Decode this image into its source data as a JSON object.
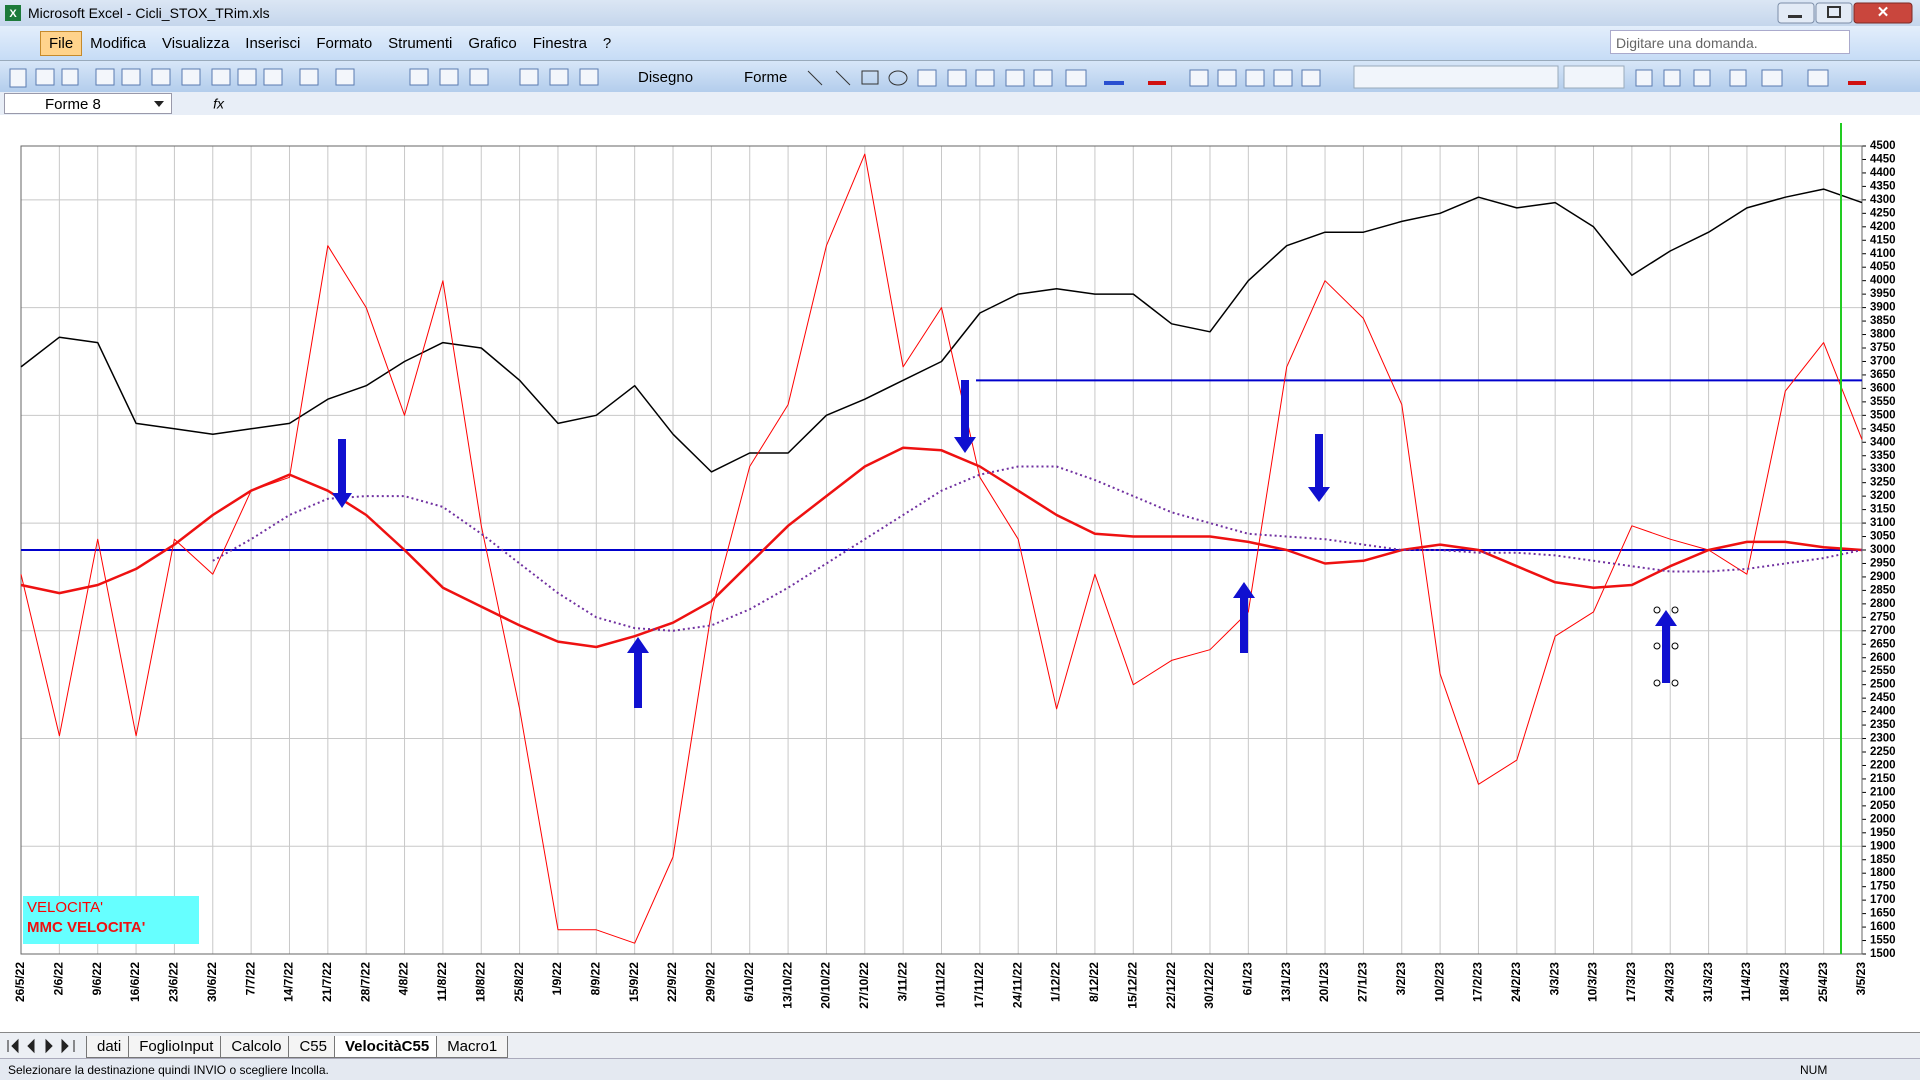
{
  "window": {
    "title": "Microsoft Excel - Cicli_STOX_TRim.xls"
  },
  "menu": [
    "File",
    "Modifica",
    "Visualizza",
    "Inserisci",
    "Formato",
    "Strumenti",
    "Grafico",
    "Finestra",
    "?"
  ],
  "help_box": "Digitare una domanda.",
  "toolbar": {
    "draw": "Disegno",
    "shapes": "Forme"
  },
  "name_box": "Forme 8",
  "sheet_tabs": [
    "dati",
    "FoglioInput",
    "Calcolo",
    "C55",
    "VelocitàC55",
    "Macro1"
  ],
  "active_tab": 4,
  "status": {
    "message": "Selezionare la destinazione quindi INVIO o scegliere Incolla.",
    "num": "NUM"
  },
  "chart_data": {
    "type": "line",
    "categories": [
      "26/5/22",
      "2/6/22",
      "9/6/22",
      "16/6/22",
      "23/6/22",
      "30/6/22",
      "7/7/22",
      "14/7/22",
      "21/7/22",
      "28/7/22",
      "4/8/22",
      "11/8/22",
      "18/8/22",
      "25/8/22",
      "1/9/22",
      "8/9/22",
      "15/9/22",
      "22/9/22",
      "29/9/22",
      "6/10/22",
      "13/10/22",
      "20/10/22",
      "27/10/22",
      "3/11/22",
      "10/11/22",
      "17/11/22",
      "24/11/22",
      "1/12/22",
      "8/12/22",
      "15/12/22",
      "22/12/22",
      "30/12/22",
      "6/1/23",
      "13/1/23",
      "20/1/23",
      "27/1/23",
      "3/2/23",
      "10/2/23",
      "17/2/23",
      "24/2/23",
      "3/3/23",
      "10/3/23",
      "17/3/23",
      "24/3/23",
      "31/3/23",
      "11/4/23",
      "18/4/23",
      "25/4/23",
      "3/5/23"
    ],
    "series": [
      {
        "color": "#000000",
        "width": 1.5,
        "values": [
          3680,
          3790,
          3770,
          3470,
          3450,
          3430,
          3450,
          3470,
          3560,
          3610,
          3700,
          3770,
          3750,
          3630,
          3470,
          3500,
          3610,
          3430,
          3290,
          3360,
          3360,
          3500,
          3560,
          3630,
          3700,
          3880,
          3950,
          3970,
          3950,
          3950,
          3840,
          3810,
          4000,
          4130,
          4180,
          4180,
          4220,
          4250,
          4310,
          4270,
          4290,
          4200,
          4020,
          4110,
          4180,
          4270,
          4310,
          4340,
          4290
        ]
      },
      {
        "name": "VELOCITA'",
        "color": "#ff0000",
        "width": 1,
        "values": [
          2910,
          2310,
          3040,
          2310,
          3040,
          2910,
          3220,
          3270,
          4130,
          3900,
          3500,
          4000,
          3090,
          2410,
          1590,
          1590,
          1540,
          1860,
          2770,
          3310,
          3540,
          4130,
          4470,
          3680,
          3900,
          3270,
          3040,
          2410,
          2910,
          2500,
          2590,
          2630,
          2770,
          3680,
          4000,
          3860,
          3540,
          2540,
          2130,
          2220,
          2680,
          2770,
          3090,
          3040,
          3000,
          2910,
          3590,
          3770,
          3410
        ]
      },
      {
        "name": "MMC VELOCITA'",
        "color": "#ee1111",
        "width": 2.5,
        "values": [
          2870,
          2840,
          2870,
          2930,
          3020,
          3130,
          3220,
          3280,
          3220,
          3130,
          3000,
          2860,
          2790,
          2720,
          2660,
          2640,
          2680,
          2730,
          2810,
          2950,
          3090,
          3200,
          3310,
          3380,
          3370,
          3310,
          3220,
          3130,
          3060,
          3050,
          3050,
          3050,
          3030,
          3000,
          2950,
          2960,
          3000,
          3020,
          3000,
          2940,
          2880,
          2860,
          2870,
          2940,
          3000,
          3030,
          3030,
          3010,
          3000
        ]
      },
      {
        "color": "#7030a0",
        "width": 2,
        "dotted": true,
        "values": [
          null,
          null,
          null,
          null,
          null,
          2960,
          3040,
          3130,
          3190,
          3200,
          3200,
          3160,
          3060,
          2950,
          2840,
          2750,
          2710,
          2700,
          2720,
          2780,
          2860,
          2950,
          3040,
          3130,
          3220,
          3280,
          3310,
          3310,
          3260,
          3200,
          3140,
          3100,
          3060,
          3050,
          3040,
          3020,
          3000,
          3000,
          2990,
          2990,
          2980,
          2960,
          2940,
          2920,
          2920,
          2930,
          2950,
          2970,
          3000
        ]
      }
    ],
    "reference_lines": [
      {
        "value": 3000,
        "color": "#0000cc"
      },
      {
        "value": 3630,
        "color": "#0000cc"
      }
    ],
    "ylim": [
      1500,
      4500
    ],
    "yticks": [
      1500,
      1550,
      1600,
      1650,
      1700,
      1750,
      1800,
      1850,
      1900,
      1950,
      2000,
      2050,
      2100,
      2150,
      2200,
      2250,
      2300,
      2350,
      2400,
      2450,
      2500,
      2550,
      2600,
      2650,
      2700,
      2750,
      2800,
      2850,
      2900,
      2950,
      3000,
      3050,
      3100,
      3150,
      3200,
      3250,
      3300,
      3350,
      3400,
      3450,
      3500,
      3550,
      3600,
      3650,
      3700,
      3750,
      3800,
      3850,
      3900,
      3950,
      4000,
      4050,
      4100,
      4150,
      4200,
      4250,
      4300,
      4350,
      4400,
      4450,
      4500
    ],
    "grid": true,
    "legend": "lower left"
  }
}
